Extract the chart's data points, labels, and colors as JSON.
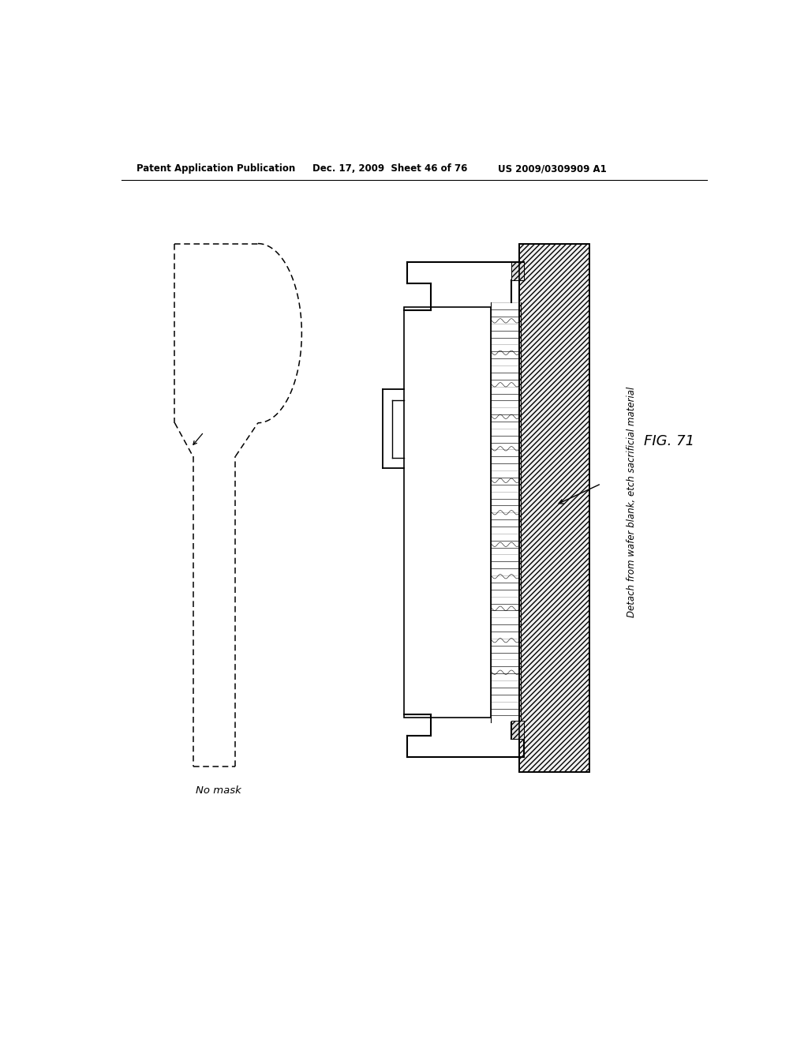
{
  "header_left": "Patent Application Publication",
  "header_mid": "Dec. 17, 2009  Sheet 46 of 76",
  "header_right": "US 2009/0309909 A1",
  "fig_label": "FIG. 71",
  "label_left": "No mask",
  "label_right": "Detach from wafer blank, etch sacrificial material",
  "bg_color": "#ffffff",
  "line_color": "#000000"
}
